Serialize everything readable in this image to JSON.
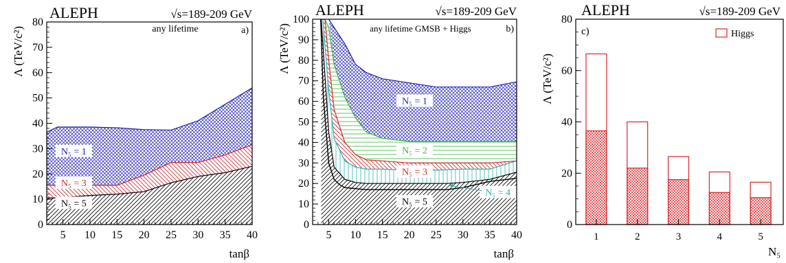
{
  "colors": {
    "blue": "#1f1fb5",
    "red": "#d8262a",
    "green": "#3ab53a",
    "cyan": "#2bb0b0",
    "black": "#000000"
  },
  "chart_data": [
    {
      "id": "a",
      "type": "area",
      "experiment": "ALEPH",
      "energy": "√s=189-209 GeV",
      "panel_label": "a)",
      "annotation": "any lifetime",
      "xlabel": "tanβ",
      "ylabel": "Λ (TeV/c²)",
      "xlim": [
        2,
        40
      ],
      "ylim": [
        0,
        80
      ],
      "xticks": [
        5,
        10,
        15,
        20,
        25,
        30,
        35,
        40
      ],
      "yticks": [
        0,
        10,
        20,
        30,
        40,
        50,
        60,
        70,
        80
      ],
      "series": [
        {
          "name": "N5 = 1",
          "label_text": "N₅ = 1",
          "color": "blue",
          "pattern": "crosshatch",
          "x": [
            2,
            4,
            10,
            15,
            20,
            25,
            30,
            35,
            40
          ],
          "upper": [
            36.5,
            38.5,
            38.5,
            38.2,
            37.5,
            37.3,
            41,
            47.5,
            54
          ],
          "lower": [
            15.5,
            15.5,
            15.5,
            15.5,
            19.5,
            24.5,
            24.5,
            27.5,
            31.5
          ]
        },
        {
          "name": "N5 = 3",
          "label_text": "N₅ = 3",
          "color": "red",
          "pattern": "diag-rev",
          "x": [
            2,
            4,
            10,
            15,
            20,
            25,
            30,
            35,
            40
          ],
          "upper": [
            15.5,
            15.5,
            15.5,
            15.5,
            19.5,
            24.5,
            24.5,
            27.5,
            31.5
          ],
          "lower": [
            10.5,
            10.5,
            11.5,
            12,
            13,
            16.5,
            19,
            20.5,
            23
          ]
        },
        {
          "name": "N5 = 5",
          "label_text": "N₅ = 5",
          "color": "black",
          "pattern": "diag",
          "x": [
            2,
            4,
            10,
            15,
            20,
            25,
            30,
            35,
            40
          ],
          "upper": [
            10.5,
            10.5,
            11.5,
            12,
            13,
            16.5,
            19,
            20.5,
            23
          ],
          "lower": [
            0,
            0,
            0,
            0,
            0,
            0,
            0,
            0,
            0
          ]
        }
      ]
    },
    {
      "id": "b",
      "type": "area",
      "experiment": "ALEPH",
      "energy": "√s=189-209 GeV",
      "panel_label": "b)",
      "annotation": "any lifetime GMSB + Higgs",
      "xlabel": "tanβ",
      "ylabel": "Λ (TeV/c²)",
      "xlim": [
        2,
        40
      ],
      "ylim": [
        0,
        100
      ],
      "xticks": [
        5,
        10,
        15,
        20,
        25,
        30,
        35,
        40
      ],
      "yticks": [
        0,
        10,
        20,
        30,
        40,
        50,
        60,
        70,
        80,
        90,
        100
      ],
      "series": [
        {
          "name": "N5 = 1",
          "label_text": "N₅ = 1",
          "color": "blue",
          "pattern": "crosshatch",
          "x": [
            5,
            6,
            8,
            10,
            12,
            15,
            20,
            25,
            30,
            35,
            40
          ],
          "upper": [
            100,
            96,
            88,
            78,
            74,
            71,
            69,
            67,
            67,
            67,
            69.5
          ],
          "lower": [
            100,
            78,
            62,
            52,
            45,
            42,
            40.5,
            40.5,
            40.5,
            40.5,
            40.5
          ]
        },
        {
          "name": "N5 = 2",
          "label_text": "N₅ = 2",
          "color": "green",
          "pattern": "horiz",
          "x": [
            4.3,
            5,
            6,
            8,
            10,
            12,
            15,
            20,
            25,
            30,
            35,
            40
          ],
          "upper": [
            100,
            96,
            78,
            62,
            52,
            45,
            42,
            40.5,
            40.5,
            40.5,
            40.5,
            40.5
          ],
          "lower": [
            100,
            80,
            56,
            40,
            34,
            31.5,
            31,
            30,
            30,
            30,
            30,
            31
          ]
        },
        {
          "name": "N5 = 3",
          "label_text": "N₅ = 3",
          "color": "red",
          "pattern": "diag-rev",
          "x": [
            3.9,
            4.3,
            5,
            6,
            8,
            10,
            12,
            15,
            20,
            25,
            30,
            35,
            40
          ],
          "upper": [
            100,
            100,
            80,
            56,
            40,
            34,
            31.5,
            31,
            30,
            30,
            30,
            30,
            31
          ],
          "lower": [
            100,
            90,
            65,
            42,
            31,
            28,
            27,
            27,
            26.5,
            26.5,
            27,
            27,
            31
          ]
        },
        {
          "name": "N5 = 4",
          "label_text": "N₅ = 4",
          "color": "cyan",
          "pattern": "vert",
          "x": [
            3.6,
            3.9,
            5,
            6,
            8,
            10,
            12,
            15,
            20,
            25,
            30,
            35,
            40
          ],
          "upper": [
            100,
            100,
            65,
            42,
            31,
            28,
            27,
            27,
            26.5,
            26.5,
            27,
            27,
            31
          ],
          "lower": [
            100,
            92,
            45,
            28,
            22,
            20.5,
            20,
            20,
            20,
            20,
            20.5,
            22,
            25.5
          ]
        },
        {
          "name": "N5 = 5",
          "label_text": "N₅ = 5",
          "color": "black",
          "pattern": "diag",
          "x": [
            3.6,
            5,
            6,
            8,
            10,
            12,
            15,
            20,
            25,
            27,
            30,
            35,
            40
          ],
          "upper": [
            100,
            45,
            28,
            22,
            20.5,
            20,
            20,
            20,
            20,
            20,
            20.5,
            22,
            25.5
          ],
          "lower": [
            0,
            0,
            0,
            0,
            0,
            0,
            0,
            0,
            0,
            0,
            0,
            0,
            0
          ]
        }
      ],
      "black_boundary": {
        "x": [
          3.5,
          4,
          5,
          6,
          7,
          8,
          10,
          12,
          15,
          20,
          25,
          27,
          30,
          35,
          40
        ],
        "y": [
          100,
          62,
          30,
          22,
          19.5,
          18,
          17.5,
          17,
          17,
          17,
          17,
          17,
          18,
          21,
          22.5
        ]
      }
    },
    {
      "id": "c",
      "type": "bar",
      "experiment": "ALEPH",
      "energy": "√s=189-209 GeV",
      "panel_label": "c)",
      "xlabel": "N₅",
      "ylabel": "Λ (TeV/c²)",
      "categories": [
        "1",
        "2",
        "3",
        "4",
        "5"
      ],
      "xlim": [
        0.5,
        5.55
      ],
      "ylim": [
        0,
        80
      ],
      "yticks": [
        0,
        20,
        40,
        60,
        80
      ],
      "series": [
        {
          "name": "Higgs",
          "style": "outline",
          "color": "red",
          "values": [
            66.5,
            40,
            26.5,
            20.5,
            16.5
          ]
        },
        {
          "name": "solid",
          "style": "filled-hatch",
          "color": "red",
          "values": [
            36.5,
            22,
            17.5,
            12.5,
            10.5
          ]
        }
      ],
      "legend": {
        "position": "top-right",
        "entries": [
          "Higgs"
        ]
      }
    }
  ]
}
